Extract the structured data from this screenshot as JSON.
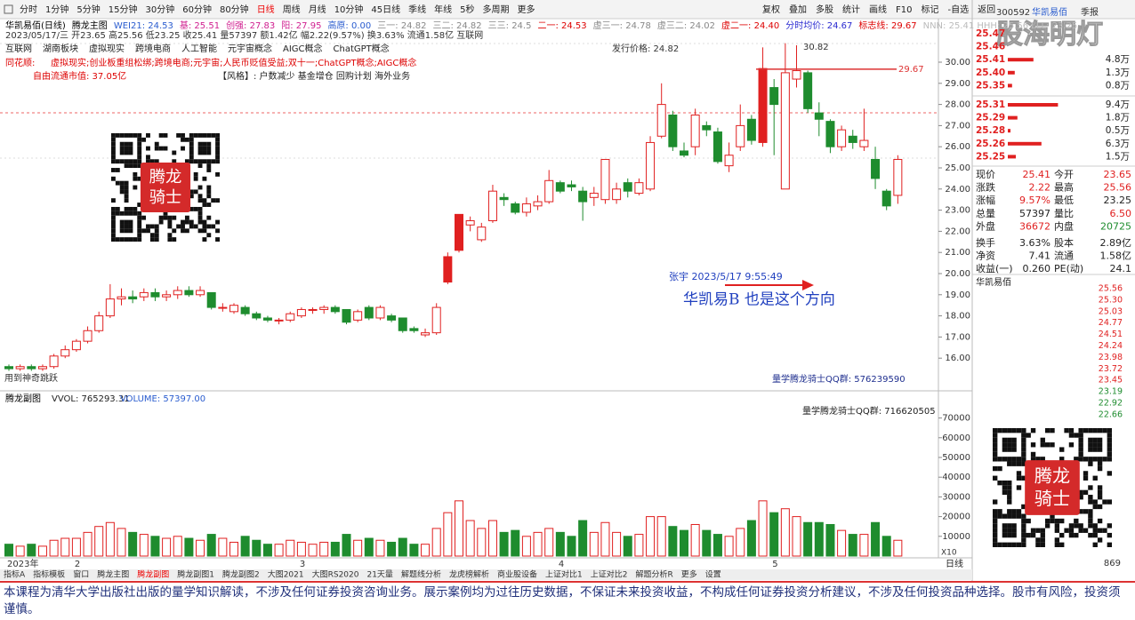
{
  "toolbar": {
    "periods": [
      "分时",
      "1分钟",
      "5分钟",
      "15分钟",
      "30分钟",
      "60分钟",
      "80分钟",
      "日线",
      "周线",
      "月线",
      "10分钟",
      "45日线",
      "季线",
      "年线",
      "5秒",
      "多周期",
      "更多"
    ],
    "tools": [
      "复权",
      "叠加",
      "多股",
      "统计",
      "画线",
      "F10",
      "标记",
      "-自选",
      "返回"
    ]
  },
  "header": {
    "line1": [
      "华凯易佰(日线)",
      "腾龙主图",
      "WEI21: 24.53",
      "基: 25.51",
      "创强: 27.83",
      "阳: 27.95",
      "高原: 0.00",
      "三一: 24.82",
      "三二: 24.82",
      "三三: 24.5",
      "二一: 24.53",
      "虚三一: 24.78",
      "虚三二: 24.02",
      "虚二一: 24.40",
      "分时均价: 24.67",
      "标志线: 29.67",
      "NNN: 25.41  HHH: 25.56  LLL: 23.25"
    ],
    "line2": "2023/05/17/三 开23.65 高25.56 低23.25 收25.41 量57397 额1.42亿 幅2.22(9.57%) 换3.63% 流通1.58亿 互联网",
    "line3": [
      "互联网",
      "湖南板块",
      "虚拟现实",
      "跨境电商",
      "人工智能",
      "元宇宙概念",
      "AIGC概念",
      "ChatGPT概念"
    ],
    "issue_price": "发行价格: 24.82",
    "ths_label": "同花顺:",
    "ths": "虚拟现实;创业板重组松绑;跨境电商;元宇宙;人民币贬值受益;双十一;ChatGPT概念;AIGC概念",
    "float_cap": "自由流通市值: 37.05亿",
    "style": "【风格】: 户数减少 基金增仓 回购计划 海外业务"
  },
  "annotations": {
    "high": "30.82",
    "flag_line": 29.67,
    "author": "张宇 2023/5/17 9:55:49",
    "note": "华凯易B   也是这个方向",
    "qq1": "量学腾龙骑士QQ群: 576239590",
    "qq2": "量学腾龙骑士QQ群: 716620505",
    "jump": "用到神奇跳跃"
  },
  "price_axis": {
    "ticks": [
      {
        "value": 30,
        "label": "30.00"
      },
      {
        "value": 29,
        "label": "29.00"
      },
      {
        "value": 28,
        "label": "28.00"
      },
      {
        "value": 27,
        "label": "27.00"
      },
      {
        "value": 26,
        "label": "26.00"
      },
      {
        "value": 25,
        "label": "25.00"
      },
      {
        "value": 24,
        "label": "24.00"
      },
      {
        "value": 23,
        "label": "23.00"
      },
      {
        "value": 22,
        "label": "22.00"
      },
      {
        "value": 21,
        "label": "21.00"
      },
      {
        "value": 20,
        "label": "20.00"
      },
      {
        "value": 19,
        "label": "19.00"
      },
      {
        "value": 18,
        "label": "18.00"
      },
      {
        "value": 17,
        "label": "17.00"
      },
      {
        "value": 16,
        "label": "16.00"
      }
    ]
  },
  "kline": {
    "open": [
      15.6,
      15.5,
      15.6,
      15.5,
      15.6,
      16.1,
      16.4,
      16.8,
      17.3,
      18.0,
      18.8,
      18.9,
      18.9,
      19.1,
      18.9,
      19.0,
      19.2,
      19.0,
      19.1,
      18.4,
      18.2,
      18.4,
      18.1,
      17.9,
      17.8,
      17.8,
      18.0,
      18.3,
      18.3,
      18.4,
      18.3,
      17.8,
      18.4,
      17.9,
      18.0,
      17.9,
      17.4,
      17.1,
      17.2,
      19.6,
      21.1,
      22.3,
      21.6,
      22.5,
      23.6,
      23.3,
      22.9,
      23.2,
      23.4,
      24.3,
      24.2,
      23.9,
      23.6,
      23.5,
      23.5,
      24.3,
      23.8,
      24.0,
      26.5,
      27.5,
      25.8,
      26.0,
      27.0,
      26.7,
      25.1,
      26.0,
      27.3,
      26.2,
      28.8,
      24.0,
      29.2,
      29.5,
      27.6,
      27.2,
      26.0,
      26.5,
      26.0,
      25.4,
      23.9,
      23.7
    ],
    "close": [
      15.5,
      15.6,
      15.5,
      15.6,
      16.1,
      16.4,
      16.8,
      17.3,
      18.0,
      18.8,
      18.9,
      18.8,
      19.1,
      18.9,
      19.0,
      19.2,
      19.0,
      19.2,
      18.4,
      18.4,
      18.5,
      18.1,
      17.9,
      17.8,
      17.8,
      18.1,
      18.3,
      18.3,
      18.4,
      18.2,
      17.7,
      18.2,
      17.9,
      18.4,
      17.8,
      17.3,
      17.3,
      17.2,
      18.4,
      20.8,
      22.8,
      22.5,
      22.2,
      23.9,
      23.5,
      22.9,
      23.3,
      23.4,
      24.4,
      23.9,
      24.1,
      23.4,
      23.8,
      25.4,
      24.0,
      23.9,
      24.3,
      26.2,
      28.0,
      26.0,
      25.6,
      27.5,
      26.8,
      25.3,
      25.6,
      27.0,
      26.3,
      29.7,
      28.0,
      29.5,
      29.6,
      27.8,
      27.3,
      26.0,
      26.8,
      26.2,
      26.3,
      24.5,
      23.2,
      25.4
    ],
    "high": [
      15.7,
      15.7,
      15.7,
      15.7,
      16.2,
      16.6,
      16.9,
      17.5,
      18.2,
      19.5,
      19.3,
      19.2,
      19.3,
      19.3,
      19.2,
      19.4,
      19.4,
      19.4,
      19.1,
      18.6,
      18.6,
      18.5,
      18.2,
      18.0,
      17.9,
      18.2,
      18.4,
      18.4,
      18.5,
      18.5,
      18.3,
      18.3,
      18.5,
      18.5,
      18.1,
      17.9,
      17.5,
      17.4,
      18.6,
      21.0,
      22.8,
      22.7,
      22.4,
      24.2,
      23.8,
      23.4,
      23.6,
      23.7,
      24.9,
      24.4,
      24.4,
      24.1,
      24.1,
      25.4,
      24.3,
      24.5,
      24.5,
      26.5,
      29.0,
      27.7,
      26.2,
      27.8,
      27.2,
      26.9,
      26.2,
      28.0,
      27.5,
      30.7,
      29.2,
      30.9,
      30.8,
      29.6,
      28.1,
      27.3,
      27.0,
      26.8,
      27.8,
      26.0,
      24.0,
      25.6
    ],
    "low": [
      15.4,
      15.4,
      15.4,
      15.4,
      15.5,
      16.0,
      16.3,
      16.7,
      17.2,
      17.9,
      18.5,
      18.6,
      18.7,
      18.7,
      18.7,
      18.8,
      18.9,
      18.9,
      18.3,
      18.2,
      18.1,
      18.0,
      17.8,
      17.7,
      17.6,
      17.7,
      17.9,
      18.1,
      18.1,
      18.1,
      17.6,
      17.7,
      17.8,
      17.8,
      17.7,
      17.2,
      17.2,
      17.0,
      17.1,
      19.5,
      21.0,
      22.0,
      21.5,
      22.4,
      23.2,
      22.8,
      22.7,
      23.0,
      23.3,
      23.8,
      23.9,
      22.5,
      23.2,
      23.3,
      23.3,
      23.6,
      23.7,
      23.9,
      26.4,
      25.8,
      25.5,
      25.6,
      26.5,
      25.2,
      24.8,
      25.8,
      26.1,
      26.0,
      25.6,
      24.0,
      28.8,
      27.6,
      26.5,
      25.7,
      25.8,
      25.9,
      25.8,
      24.0,
      23.0,
      23.3
    ]
  },
  "volume_pane": {
    "title": "腾龙副图",
    "vvol": "VVOL: 765293.31",
    "volume": "VOLUME: 57397.00",
    "ticks": [
      70000,
      60000,
      50000,
      40000,
      30000,
      20000,
      10000
    ],
    "values": [
      6000,
      5000,
      6000,
      5000,
      8000,
      9000,
      9000,
      12000,
      15000,
      17000,
      14000,
      12000,
      11000,
      10000,
      9000,
      10000,
      9000,
      8000,
      11000,
      9000,
      7000,
      10000,
      8000,
      6000,
      6000,
      8000,
      7000,
      6000,
      7000,
      7000,
      11000,
      8000,
      9000,
      8000,
      7000,
      9000,
      6000,
      6000,
      14000,
      22000,
      28000,
      18000,
      14000,
      18000,
      12000,
      13000,
      10000,
      12000,
      14000,
      12000,
      10000,
      18000,
      12000,
      17000,
      12000,
      10000,
      11000,
      20000,
      20000,
      15000,
      13000,
      16000,
      13000,
      11000,
      10000,
      14000,
      18000,
      28000,
      22000,
      24000,
      20000,
      17000,
      17000,
      16000,
      13000,
      11000,
      11000,
      17000,
      10000,
      8000
    ]
  },
  "dates": [
    "2023年",
    "2",
    "3",
    "4",
    "5"
  ],
  "tabs": [
    "指标A",
    "指标模板",
    "窗口",
    "腾龙主图",
    "腾龙副图",
    "腾龙副图1",
    "腾龙副图2",
    "大图2021",
    "大图RS2020",
    "21天量",
    "解题线分析",
    "龙虎榜解析",
    "商业股设备",
    "上证对比1",
    "上证对比2",
    "解题分析R",
    "更多",
    "设置"
  ],
  "period_tab": "日线",
  "quote": {
    "code": "300592",
    "name": "华凯易佰",
    "report": "季报",
    "sells": [
      {
        "price": "25.47"
      },
      {
        "price": "25.46"
      },
      {
        "price": "25.41",
        "vol": 4.8,
        "vol_label": "4.8万"
      },
      {
        "price": "25.40",
        "vol": 1.3,
        "vol_label": "1.3万"
      },
      {
        "price": "25.35",
        "vol": 0.8,
        "vol_label": "0.8万"
      }
    ],
    "buys": [
      {
        "price": "25.31",
        "vol": 9.4,
        "vol_label": "9.4万"
      },
      {
        "price": "25.29",
        "vol": 1.8,
        "vol_label": "1.8万"
      },
      {
        "price": "25.28",
        "vol": 0.5,
        "vol_label": "0.5万"
      },
      {
        "price": "25.26",
        "vol": 6.3,
        "vol_label": "6.3万"
      },
      {
        "price": "25.25",
        "vol": 1.5,
        "vol_label": "1.5万"
      }
    ],
    "stats": [
      [
        "现价",
        "25.41",
        "今开",
        "23.65"
      ],
      [
        "涨跌",
        "2.22",
        "最高",
        "25.56"
      ],
      [
        "涨幅",
        "9.57%",
        "最低",
        "23.25"
      ],
      [
        "总量",
        "57397",
        "量比",
        "6.50"
      ],
      [
        "外盘",
        "36672",
        "内盘",
        "20725"
      ],
      [
        "换手",
        "3.63%",
        "股本",
        "2.89亿"
      ],
      [
        "净资",
        "7.41",
        "流通",
        "1.58亿"
      ],
      [
        "收益(一)",
        "0.260",
        "PE(动)",
        "24.1"
      ]
    ],
    "mini_title": "华凯易佰",
    "mini_ticks": [
      "25.56",
      "25.30",
      "25.03",
      "24.77",
      "24.51",
      "24.24",
      "23.98",
      "23.72",
      "23.45",
      "23.19",
      "22.92",
      "22.66"
    ],
    "mini_volume": "869",
    "zoom": "X10"
  },
  "watermark": "股海明灯",
  "qr": {
    "label1": "腾龙",
    "label2": "骑士"
  },
  "disclaimer": "本课程为清华大学出版社出版的量学知识解读，不涉及任何证券投资咨询业务。展示案例均为过往历史数据，不保证未来投资收益，不构成任何证券投资分析建议，不涉及任何投资品种选择。股市有风险，投资须谨慎。"
}
